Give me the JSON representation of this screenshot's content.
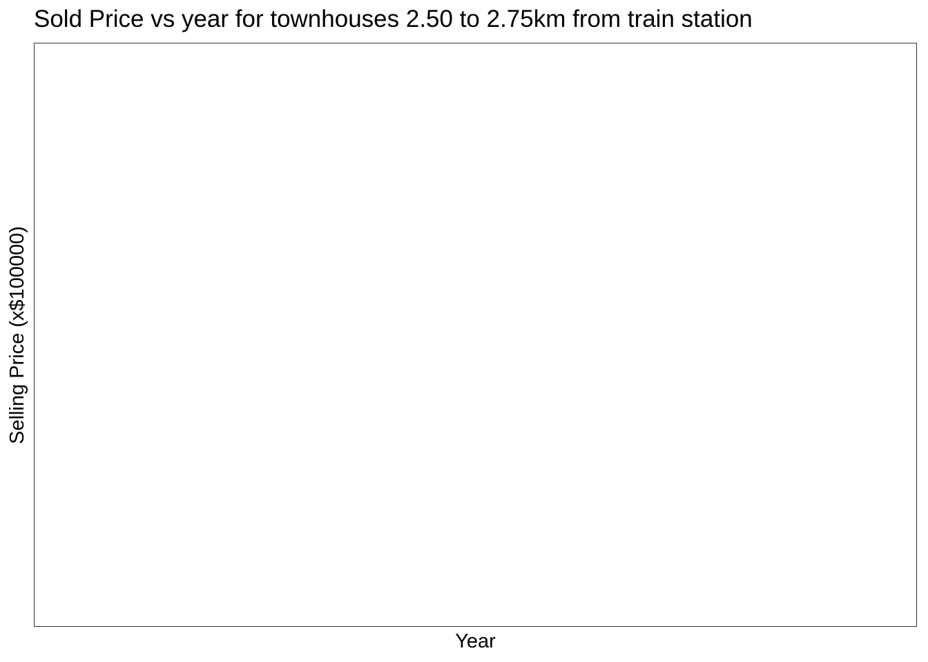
{
  "chart_data": {
    "type": "scatter",
    "title": "Sold Price vs year for townhouses 2.50 to 2.75km from train station",
    "xlabel": "Year",
    "ylabel": "Selling Price (x$100000)",
    "x": [],
    "y": [],
    "grid": false,
    "legend": "none"
  }
}
